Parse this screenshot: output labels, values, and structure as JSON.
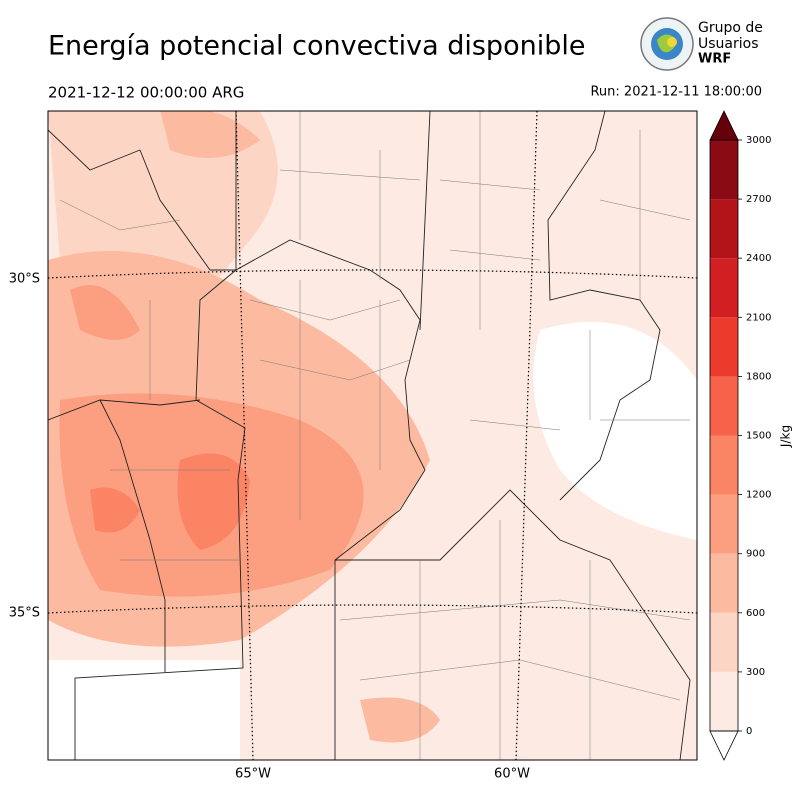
{
  "title": "Energía potencial convectiva disponible",
  "valid_time": "2021-12-12 00:00:00 ARG",
  "run_time": "Run: 2021-12-11 18:00:00",
  "logo": {
    "line1": "Grupo de",
    "line2": "Usuarios",
    "line3": "WRF"
  },
  "map": {
    "lat_labels": [
      "30°S",
      "35°S"
    ],
    "lon_labels": [
      "65°W",
      "60°W"
    ]
  },
  "colorbar": {
    "label": "J/kg",
    "lim": [
      0,
      3000
    ],
    "ticks": [
      0,
      300,
      600,
      900,
      1200,
      1500,
      1800,
      2100,
      2400,
      2700,
      3000
    ],
    "levels": [
      0,
      300,
      600,
      900,
      1200,
      1500,
      1800,
      2100,
      2400,
      2700,
      3000
    ],
    "colors": [
      "#fdebe3",
      "#fcd5c4",
      "#fcbba1",
      "#fc9f81",
      "#fb8464",
      "#f6634a",
      "#ec3a2c",
      "#d11f22",
      "#b3141a",
      "#8b0b14"
    ],
    "over_color": "#67000d",
    "under_color": "#ffffff"
  }
}
